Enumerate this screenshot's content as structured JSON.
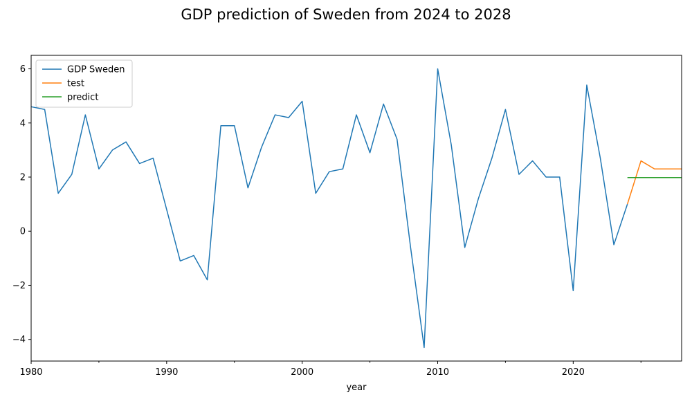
{
  "chart_data": {
    "type": "line",
    "title": "GDP prediction of Sweden from 2024 to 2028",
    "xlabel": "year",
    "ylabel": "",
    "xlim": [
      1980,
      2028
    ],
    "ylim": [
      -4.8,
      6.5
    ],
    "xticks": [
      1980,
      1990,
      2000,
      2010,
      2020
    ],
    "xtick_labels": [
      "1980",
      "1990",
      "2000",
      "2010",
      "2020"
    ],
    "xminor_ticks": [
      1985,
      1995,
      2005,
      2015,
      2025
    ],
    "yticks": [
      -4,
      -2,
      0,
      2,
      4,
      6
    ],
    "ytick_labels": [
      "−4",
      "−2",
      "0",
      "2",
      "4",
      "6"
    ],
    "grid": false,
    "legend_position": "upper-left",
    "series": [
      {
        "name": "GDP Sweden",
        "color": "#1f77b4",
        "x": [
          1980,
          1981,
          1982,
          1983,
          1984,
          1985,
          1986,
          1987,
          1988,
          1989,
          1990,
          1991,
          1992,
          1993,
          1994,
          1995,
          1996,
          1997,
          1998,
          1999,
          2000,
          2001,
          2002,
          2003,
          2004,
          2005,
          2006,
          2007,
          2008,
          2009,
          2010,
          2011,
          2012,
          2013,
          2014,
          2015,
          2016,
          2017,
          2018,
          2019,
          2020,
          2021,
          2022,
          2023,
          2024
        ],
        "y": [
          4.6,
          4.5,
          1.4,
          2.1,
          4.3,
          2.3,
          3.0,
          3.3,
          2.5,
          2.7,
          0.8,
          -1.1,
          -0.9,
          -1.8,
          3.9,
          3.9,
          1.6,
          3.1,
          4.3,
          4.2,
          4.8,
          1.4,
          2.2,
          2.3,
          4.3,
          2.9,
          4.7,
          3.4,
          -0.6,
          -4.3,
          6.0,
          3.2,
          -0.6,
          1.2,
          2.7,
          4.5,
          2.1,
          2.6,
          2.0,
          2.0,
          -2.2,
          5.4,
          2.7,
          -0.5,
          1.0
        ]
      },
      {
        "name": "test",
        "color": "#ff7f0e",
        "x": [
          2024,
          2025,
          2026,
          2027,
          2028
        ],
        "y": [
          1.0,
          2.6,
          2.3,
          2.3,
          2.3
        ]
      },
      {
        "name": "predict",
        "color": "#2ca02c",
        "x": [
          2024,
          2025,
          2026,
          2027,
          2028
        ],
        "y": [
          1.98,
          1.98,
          1.98,
          1.98,
          1.98
        ]
      }
    ]
  }
}
